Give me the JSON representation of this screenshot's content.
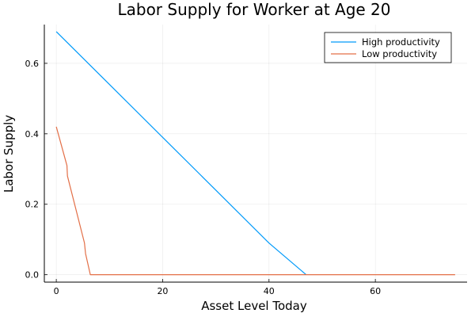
{
  "chart_data": {
    "type": "line",
    "title": "Labor Supply for Worker at Age 20",
    "xlabel": "Asset Level Today",
    "ylabel": "Labor Supply",
    "xlim": [
      -2.25,
      77.25
    ],
    "ylim": [
      -0.021,
      0.71
    ],
    "xticks": [
      0,
      20,
      40,
      60
    ],
    "yticks": [
      0.0,
      0.2,
      0.4,
      0.6
    ],
    "xtick_labels": [
      "0",
      "20",
      "40",
      "60"
    ],
    "ytick_labels": [
      "0.0",
      "0.2",
      "0.4",
      "0.6"
    ],
    "grid": true,
    "legend_position": "top-right",
    "series": [
      {
        "name": "High productivity",
        "color": "#009AFA",
        "x": [
          0,
          10,
          20,
          30,
          40,
          46.6,
          47
        ],
        "y": [
          0.69,
          0.54,
          0.39,
          0.24,
          0.09,
          0.005,
          0.0
        ]
      },
      {
        "name": "Low productivity",
        "color": "#E36F47",
        "x": [
          0,
          2.0,
          2.1,
          5.3,
          5.5,
          6.4,
          75
        ],
        "y": [
          0.42,
          0.31,
          0.28,
          0.09,
          0.06,
          0.0,
          0.0
        ]
      }
    ]
  }
}
